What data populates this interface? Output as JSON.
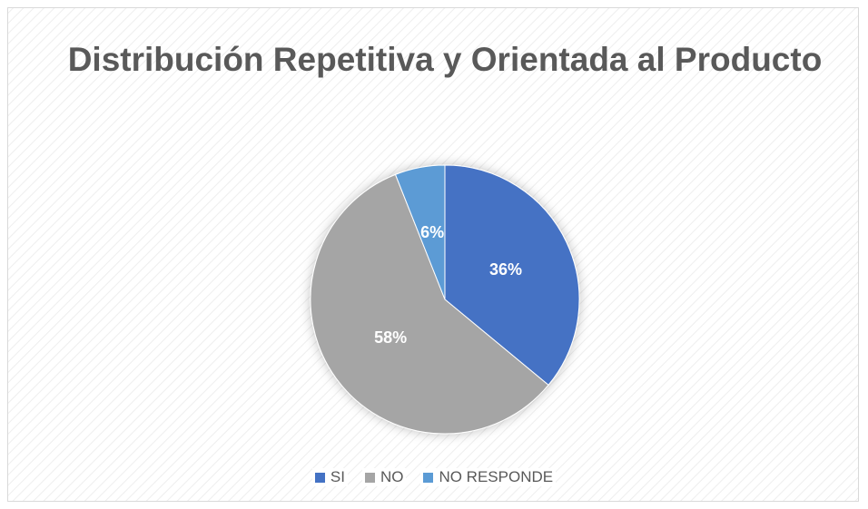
{
  "chart_data": {
    "type": "pie",
    "title": "Distribución Repetitiva y Orientada al Producto",
    "categories": [
      "SI",
      "NO",
      "NO RESPONDE"
    ],
    "values": [
      36,
      58,
      6
    ],
    "value_labels": [
      "36%",
      "58%",
      "6%"
    ],
    "colors": [
      "#4472c4",
      "#a5a5a5",
      "#5b9bd5"
    ],
    "legend": "bottom"
  }
}
